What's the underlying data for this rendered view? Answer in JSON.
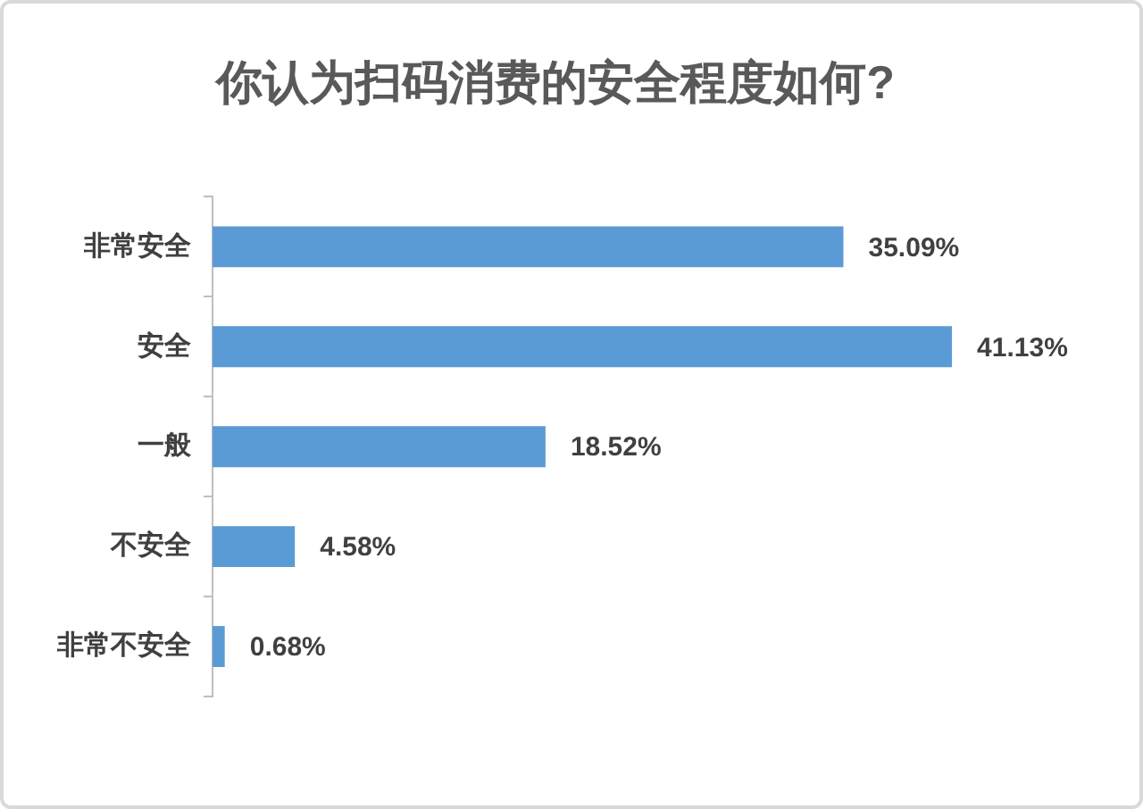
{
  "chart_data": {
    "type": "bar",
    "orientation": "horizontal",
    "title": "你认为扫码消费的安全程度如何?",
    "categories": [
      "非常安全",
      "安全",
      "一般",
      "不安全",
      "非常不安全"
    ],
    "values": [
      35.09,
      41.13,
      18.52,
      4.58,
      0.68
    ],
    "value_labels": [
      "35.09%",
      "41.13%",
      "18.52%",
      "4.58%",
      "0.68%"
    ],
    "color": "#5b9bd5"
  }
}
